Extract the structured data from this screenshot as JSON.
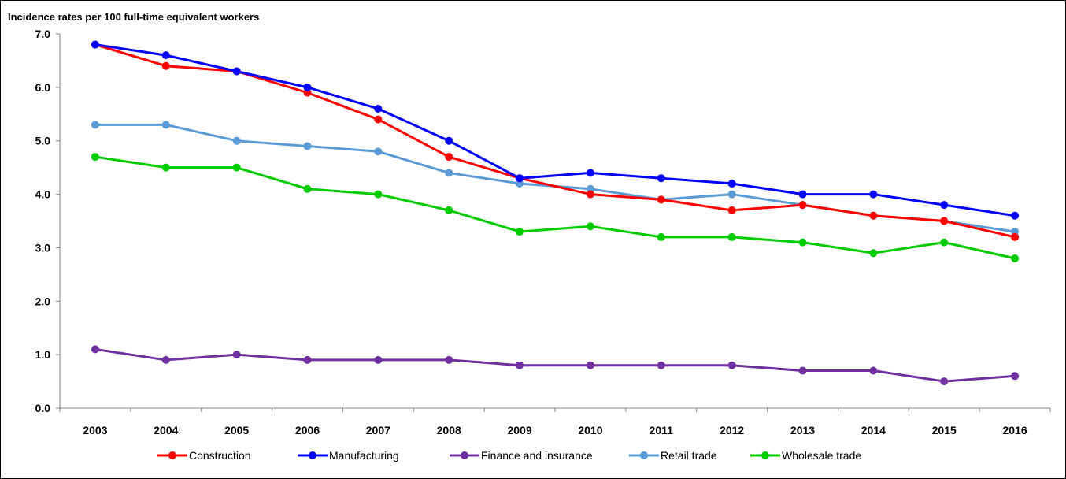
{
  "chart_data": {
    "type": "line",
    "title": "",
    "ylabel": "Incidence rates per 100 full-time equivalent workers",
    "xlabel": "",
    "categories": [
      "2003",
      "2004",
      "2005",
      "2006",
      "2007",
      "2008",
      "2009",
      "2010",
      "2011",
      "2012",
      "2013",
      "2014",
      "2015",
      "2016"
    ],
    "ylim": [
      0,
      7
    ],
    "yticks": [
      "0.0",
      "1.0",
      "2.0",
      "3.0",
      "4.0",
      "5.0",
      "6.0",
      "7.0"
    ],
    "grid": false,
    "legend_position": "bottom",
    "series": [
      {
        "name": "Construction",
        "color": "#ff0000",
        "values": [
          6.8,
          6.4,
          6.3,
          5.9,
          5.4,
          4.7,
          4.3,
          4.0,
          3.9,
          3.7,
          3.8,
          3.6,
          3.5,
          3.2
        ]
      },
      {
        "name": "Manufacturing",
        "color": "#0000ff",
        "values": [
          6.8,
          6.6,
          6.3,
          6.0,
          5.6,
          5.0,
          4.3,
          4.4,
          4.3,
          4.2,
          4.0,
          4.0,
          3.8,
          3.6
        ]
      },
      {
        "name": "Finance and insurance",
        "color": "#7030a0",
        "values": [
          1.1,
          0.9,
          1.0,
          0.9,
          0.9,
          0.9,
          0.8,
          0.8,
          0.8,
          0.8,
          0.7,
          0.7,
          0.5,
          0.6
        ]
      },
      {
        "name": "Retail trade",
        "color": "#5b9bd5",
        "values": [
          5.3,
          5.3,
          5.0,
          4.9,
          4.8,
          4.4,
          4.2,
          4.1,
          3.9,
          4.0,
          3.8,
          3.6,
          3.5,
          3.3
        ]
      },
      {
        "name": "Wholesale trade",
        "color": "#00cc00",
        "values": [
          4.7,
          4.5,
          4.5,
          4.1,
          4.0,
          3.7,
          3.3,
          3.4,
          3.2,
          3.2,
          3.1,
          2.9,
          3.1,
          2.8
        ]
      }
    ]
  }
}
